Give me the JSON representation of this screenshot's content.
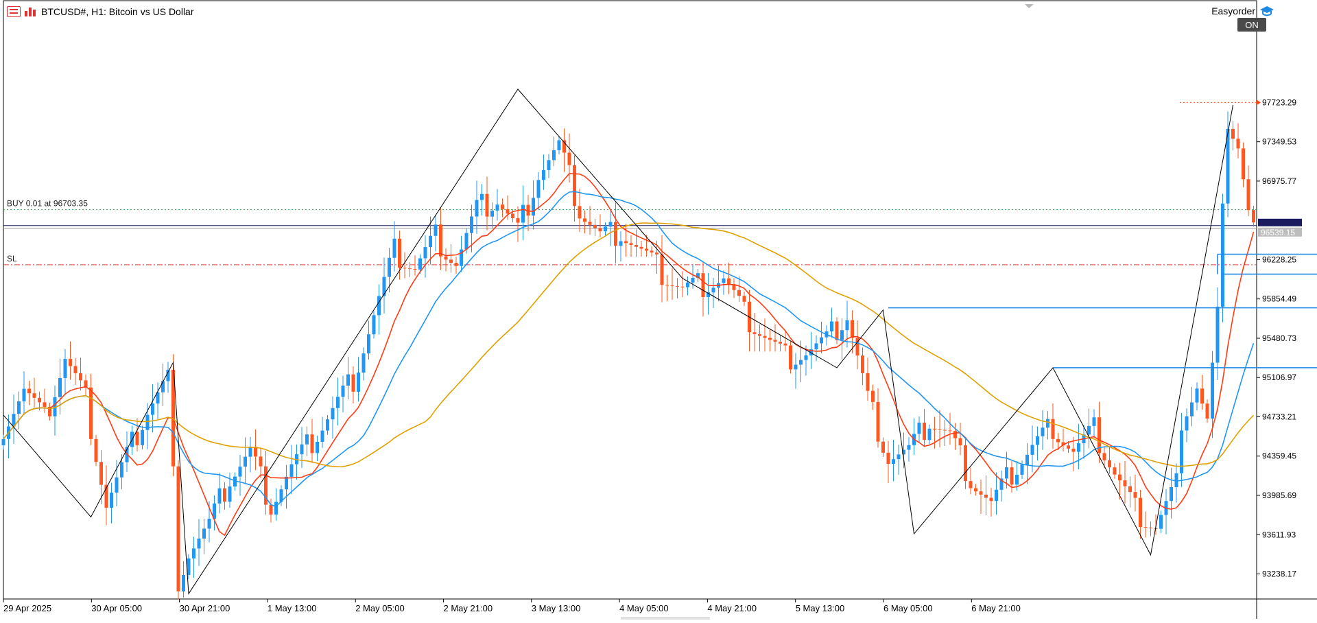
{
  "header": {
    "symbol_title": "BTCUSD#, H1:  Bitcoin vs US Dollar",
    "icons": [
      "chart-menu-icon",
      "chart-bars-icon"
    ]
  },
  "easyorder": {
    "label": "Easyorder",
    "icon": "graduation-cap-icon",
    "status": "ON"
  },
  "trade": {
    "buy_label": "BUY 0.01 at 96703.35",
    "sl_label": "SL",
    "current_price_label": "96539.15"
  },
  "colors": {
    "bull": "#2196f3",
    "bear": "#ff5722",
    "ma_fast": "#ff3b14",
    "ma_mid": "#2196f3",
    "ma_slow": "#e0a000",
    "zigzag": "#000000",
    "buy_line": "#2e9e44",
    "sl_line": "#e03c2c",
    "price_line": "#1a1a5e"
  },
  "chart_data": {
    "type": "candlestick",
    "symbol": "BTCUSD#",
    "timeframe": "H1",
    "ylim": [
      93000,
      98050
    ],
    "y_ticks": [
      "97723.29",
      "97349.53",
      "96975.77",
      "96228.25",
      "95854.49",
      "95480.73",
      "95106.97",
      "94733.21",
      "94359.45",
      "93985.69",
      "93611.93",
      "93238.17"
    ],
    "x_ticks": [
      "29 Apr 2025",
      "30 Apr 05:00",
      "30 Apr 21:00",
      "1 May 13:00",
      "2 May 05:00",
      "2 May 21:00",
      "3 May 13:00",
      "4 May 05:00",
      "4 May 21:00",
      "5 May 13:00",
      "6 May 05:00",
      "6 May 21:00"
    ],
    "levels": {
      "buy": 96703.35,
      "current": 96539.15,
      "sl": 96180,
      "ask": 97723.29
    },
    "close_path": [
      [
        0,
        94650
      ],
      [
        4,
        95000
      ],
      [
        8,
        94700
      ],
      [
        12,
        95300
      ],
      [
        16,
        94900
      ],
      [
        20,
        93900
      ],
      [
        24,
        94350
      ],
      [
        28,
        94800
      ],
      [
        32,
        95100
      ],
      [
        34,
        93200
      ],
      [
        36,
        93450
      ],
      [
        40,
        93700
      ],
      [
        44,
        94150
      ],
      [
        48,
        94400
      ],
      [
        52,
        93900
      ],
      [
        56,
        94250
      ],
      [
        60,
        94500
      ],
      [
        64,
        94800
      ],
      [
        68,
        95100
      ],
      [
        72,
        95700
      ],
      [
        76,
        96300
      ],
      [
        80,
        96150
      ],
      [
        84,
        96450
      ],
      [
        88,
        96200
      ],
      [
        92,
        96700
      ],
      [
        96,
        96800
      ],
      [
        100,
        96500
      ],
      [
        104,
        97050
      ],
      [
        108,
        97300
      ],
      [
        112,
        96700
      ],
      [
        116,
        96450
      ],
      [
        120,
        96500
      ],
      [
        124,
        96300
      ],
      [
        128,
        96100
      ],
      [
        132,
        95950
      ],
      [
        136,
        96000
      ],
      [
        140,
        96050
      ],
      [
        144,
        95700
      ],
      [
        148,
        95500
      ],
      [
        152,
        95300
      ],
      [
        156,
        95350
      ],
      [
        160,
        95450
      ],
      [
        164,
        95700
      ],
      [
        168,
        94900
      ],
      [
        172,
        94350
      ],
      [
        176,
        94400
      ],
      [
        180,
        94700
      ],
      [
        184,
        94550
      ],
      [
        188,
        94150
      ],
      [
        192,
        93900
      ],
      [
        196,
        94200
      ],
      [
        200,
        94450
      ],
      [
        204,
        94650
      ],
      [
        208,
        94400
      ],
      [
        212,
        94600
      ],
      [
        216,
        94200
      ],
      [
        220,
        93850
      ],
      [
        224,
        93700
      ],
      [
        228,
        94100
      ],
      [
        230,
        94850
      ],
      [
        232,
        95050
      ],
      [
        234,
        94700
      ],
      [
        236,
        95700
      ],
      [
        238,
        97600
      ],
      [
        240,
        97350
      ],
      [
        242,
        96700
      ],
      [
        243,
        96550
      ]
    ],
    "zigzag": [
      [
        0,
        94750
      ],
      [
        17,
        93780
      ],
      [
        33,
        95250
      ],
      [
        36,
        93050
      ],
      [
        100,
        97850
      ],
      [
        132,
        96050
      ],
      [
        162,
        95200
      ],
      [
        171,
        95750
      ],
      [
        177,
        93620
      ],
      [
        204,
        95200
      ],
      [
        223,
        93420
      ],
      [
        239,
        97700
      ]
    ],
    "ma_windows": [
      10,
      20,
      50
    ],
    "resistance_lines": [
      {
        "price": 95770,
        "x_start": 172,
        "x_end": 277
      },
      {
        "price": 95200,
        "x_start": 204,
        "x_end": 277
      },
      {
        "price": 96280,
        "x_start": 236,
        "x_end": 261
      },
      {
        "price": 96090,
        "x_start": 237,
        "x_end": 262
      }
    ]
  }
}
